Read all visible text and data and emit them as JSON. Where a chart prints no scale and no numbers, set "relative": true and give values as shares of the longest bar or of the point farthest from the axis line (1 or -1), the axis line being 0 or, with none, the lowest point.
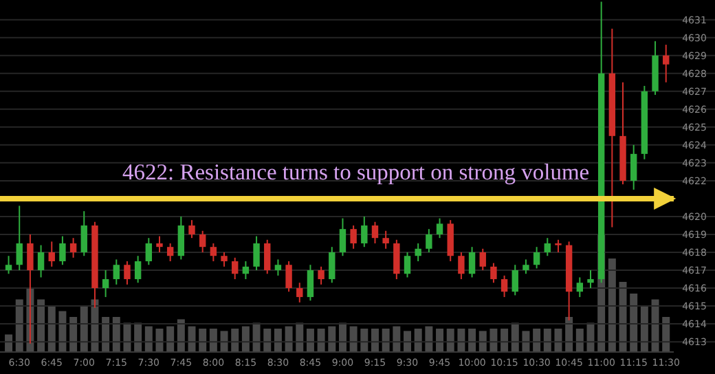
{
  "chart_data": [
    {
      "type": "candlestick",
      "x": [
        6.4167,
        6.5,
        6.5833,
        6.6667,
        6.75,
        6.8333,
        6.9167,
        7.0,
        7.0833,
        7.1667,
        7.25,
        7.3333,
        7.4167,
        7.5,
        7.5833,
        7.6667,
        7.75,
        7.8333,
        7.9167,
        8.0,
        8.0833,
        8.1667,
        8.25,
        8.3333,
        8.4167,
        8.5,
        8.5833,
        8.6667,
        8.75,
        8.8333,
        8.9167,
        9.0,
        9.0833,
        9.1667,
        9.25,
        9.3333,
        9.4167,
        9.5,
        9.5833,
        9.6667,
        9.75,
        9.8333,
        9.9167,
        10.0,
        10.0833,
        10.1667,
        10.25,
        10.3333,
        10.4167,
        10.5,
        10.5833,
        10.6667,
        10.75,
        10.8333,
        10.9167,
        11.0,
        11.0833,
        11.1667,
        11.25,
        11.3333,
        11.4167,
        11.5
      ],
      "ohlc": [
        [
          4617.0,
          4617.8,
          4616.8,
          4617.3
        ],
        [
          4617.3,
          4620.6,
          4617.0,
          4618.5
        ],
        [
          4618.5,
          4619.0,
          4612.9,
          4617.0
        ],
        [
          4617.0,
          4618.4,
          4616.6,
          4618.0
        ],
        [
          4618.0,
          4618.6,
          4617.2,
          4617.5
        ],
        [
          4617.5,
          4618.9,
          4617.3,
          4618.5
        ],
        [
          4618.5,
          4618.8,
          4617.7,
          4618.0
        ],
        [
          4618.0,
          4620.3,
          4617.8,
          4619.5
        ],
        [
          4619.5,
          4619.7,
          4614.9,
          4616.0
        ],
        [
          4616.0,
          4617.0,
          4615.5,
          4616.5
        ],
        [
          4616.5,
          4617.6,
          4616.2,
          4617.3
        ],
        [
          4617.3,
          4617.5,
          4616.2,
          4616.5
        ],
        [
          4616.5,
          4617.8,
          4616.3,
          4617.5
        ],
        [
          4617.5,
          4618.8,
          4617.3,
          4618.5
        ],
        [
          4618.5,
          4618.9,
          4618.0,
          4618.3
        ],
        [
          4618.3,
          4618.5,
          4617.5,
          4617.8
        ],
        [
          4617.8,
          4620.0,
          4617.6,
          4619.5
        ],
        [
          4619.5,
          4619.8,
          4618.8,
          4619.0
        ],
        [
          4619.0,
          4619.2,
          4618.0,
          4618.3
        ],
        [
          4618.3,
          4618.5,
          4617.5,
          4617.8
        ],
        [
          4617.8,
          4618.0,
          4617.2,
          4617.5
        ],
        [
          4617.5,
          4617.7,
          4616.5,
          4616.8
        ],
        [
          4616.8,
          4617.5,
          4616.5,
          4617.2
        ],
        [
          4617.2,
          4618.9,
          4617.0,
          4618.5
        ],
        [
          4618.5,
          4618.7,
          4616.8,
          4617.0
        ],
        [
          4617.0,
          4617.6,
          4616.7,
          4617.3
        ],
        [
          4617.3,
          4617.5,
          4615.8,
          4616.0
        ],
        [
          4616.0,
          4616.3,
          4615.2,
          4615.5
        ],
        [
          4615.5,
          4617.3,
          4615.3,
          4617.0
        ],
        [
          4617.0,
          4617.2,
          4616.2,
          4616.5
        ],
        [
          4616.5,
          4618.3,
          4616.3,
          4618.0
        ],
        [
          4618.0,
          4619.9,
          4617.8,
          4619.3
        ],
        [
          4619.3,
          4619.5,
          4618.2,
          4618.5
        ],
        [
          4618.5,
          4620.0,
          4618.3,
          4619.5
        ],
        [
          4619.5,
          4619.7,
          4618.5,
          4618.8
        ],
        [
          4618.8,
          4619.2,
          4618.2,
          4618.5
        ],
        [
          4618.5,
          4618.7,
          4616.5,
          4616.8
        ],
        [
          4616.8,
          4618.0,
          4616.6,
          4617.8
        ],
        [
          4617.8,
          4618.5,
          4617.5,
          4618.2
        ],
        [
          4618.2,
          4619.3,
          4618.0,
          4619.0
        ],
        [
          4619.0,
          4619.9,
          4618.8,
          4619.6
        ],
        [
          4619.6,
          4619.8,
          4617.5,
          4617.8
        ],
        [
          4617.8,
          4618.0,
          4616.5,
          4616.8
        ],
        [
          4616.8,
          4618.3,
          4616.6,
          4618.0
        ],
        [
          4618.0,
          4618.2,
          4617.0,
          4617.2
        ],
        [
          4617.2,
          4617.4,
          4616.3,
          4616.5
        ],
        [
          4616.5,
          4616.7,
          4615.5,
          4615.8
        ],
        [
          4615.8,
          4617.3,
          4615.6,
          4617.0
        ],
        [
          4617.0,
          4617.6,
          4616.8,
          4617.3
        ],
        [
          4617.3,
          4618.3,
          4617.1,
          4618.0
        ],
        [
          4618.0,
          4618.8,
          4617.8,
          4618.5
        ],
        [
          4618.5,
          4618.7,
          4618.0,
          4618.4
        ],
        [
          4618.4,
          4618.6,
          4614.2,
          4615.8
        ],
        [
          4615.8,
          4616.6,
          4615.5,
          4616.3
        ],
        [
          4616.3,
          4617.0,
          4616.0,
          4616.5
        ],
        [
          4616.5,
          4632.0,
          4616.3,
          4628.0
        ],
        [
          4628.0,
          4630.5,
          4619.4,
          4624.5
        ],
        [
          4624.5,
          4627.5,
          4621.8,
          4622.0
        ],
        [
          4622.0,
          4624.0,
          4621.5,
          4623.5
        ],
        [
          4623.5,
          4627.3,
          4623.2,
          4627.0
        ],
        [
          4627.0,
          4629.8,
          4626.8,
          4629.0
        ],
        [
          4629.0,
          4629.6,
          4627.5,
          4628.5
        ]
      ],
      "xlim": [
        6.35,
        11.56
      ],
      "xticks": [
        {
          "value": 6.5,
          "label": "6:30"
        },
        {
          "value": 6.75,
          "label": "6:45"
        },
        {
          "value": 7,
          "label": "7:00"
        },
        {
          "value": 7.25,
          "label": "7:15"
        },
        {
          "value": 7.5,
          "label": "7:30"
        },
        {
          "value": 7.75,
          "label": "7:45"
        },
        {
          "value": 8,
          "label": "8:00"
        },
        {
          "value": 8.25,
          "label": "8:15"
        },
        {
          "value": 8.5,
          "label": "8:30"
        },
        {
          "value": 8.75,
          "label": "8:45"
        },
        {
          "value": 9,
          "label": "9:00"
        },
        {
          "value": 9.25,
          "label": "9:15"
        },
        {
          "value": 9.5,
          "label": "9:30"
        },
        {
          "value": 9.75,
          "label": "9:45"
        },
        {
          "value": 10,
          "label": "10:00"
        },
        {
          "value": 10.25,
          "label": "10:15"
        },
        {
          "value": 10.5,
          "label": "10:30"
        },
        {
          "value": 10.75,
          "label": "10:45"
        },
        {
          "value": 11,
          "label": "11:00"
        },
        {
          "value": 11.25,
          "label": "11:15"
        },
        {
          "value": 11.5,
          "label": "11:30"
        }
      ],
      "ylim": [
        4611.2,
        4632.1
      ],
      "yticks": [
        4613,
        4614,
        4615,
        4616,
        4617,
        4618,
        4619,
        4620,
        4622,
        4623,
        4624,
        4625,
        4626,
        4627,
        4628,
        4629,
        4630,
        4631
      ],
      "grid": "y",
      "ref_lines": [
        {
          "axis": "y",
          "value": 4621,
          "label": "4622: Resistance turns to support on strong volume",
          "color": "#f2d13a"
        }
      ]
    },
    {
      "type": "bar",
      "relative": true,
      "color": "#4a4a4a",
      "xlim": [
        6.35,
        11.56
      ],
      "x": [
        6.4167,
        6.5,
        6.5833,
        6.6667,
        6.75,
        6.8333,
        6.9167,
        7.0,
        7.0833,
        7.1667,
        7.25,
        7.3333,
        7.4167,
        7.5,
        7.5833,
        7.6667,
        7.75,
        7.8333,
        7.9167,
        8.0,
        8.0833,
        8.1667,
        8.25,
        8.3333,
        8.4167,
        8.5,
        8.5833,
        8.6667,
        8.75,
        8.8333,
        8.9167,
        9.0,
        9.0833,
        9.1667,
        9.25,
        9.3333,
        9.4167,
        9.5,
        9.5833,
        9.6667,
        9.75,
        9.8333,
        9.9167,
        10.0,
        10.0833,
        10.1667,
        10.25,
        10.3333,
        10.4167,
        10.5,
        10.5833,
        10.6667,
        10.75,
        10.8333,
        10.9167,
        11.0,
        11.0833,
        11.1667,
        11.25,
        11.3333,
        11.4167,
        11.5
      ],
      "values": [
        0.15,
        0.45,
        0.55,
        0.45,
        0.4,
        0.35,
        0.3,
        0.4,
        0.45,
        0.3,
        0.3,
        0.25,
        0.25,
        0.22,
        0.2,
        0.22,
        0.28,
        0.22,
        0.2,
        0.2,
        0.18,
        0.2,
        0.22,
        0.25,
        0.2,
        0.2,
        0.22,
        0.25,
        0.2,
        0.2,
        0.22,
        0.25,
        0.22,
        0.2,
        0.2,
        0.2,
        0.22,
        0.18,
        0.2,
        0.22,
        0.2,
        0.2,
        0.2,
        0.2,
        0.18,
        0.2,
        0.2,
        0.25,
        0.18,
        0.2,
        0.2,
        0.2,
        0.3,
        0.2,
        0.25,
        1.0,
        0.8,
        0.6,
        0.5,
        0.4,
        0.45,
        0.3
      ]
    }
  ]
}
